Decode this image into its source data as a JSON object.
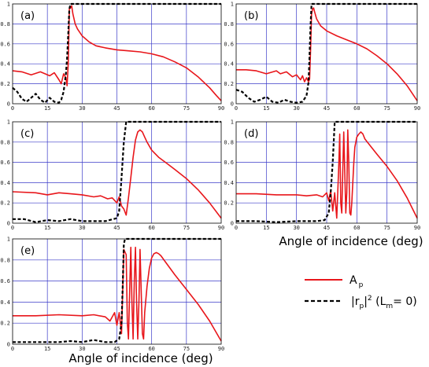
{
  "colors": {
    "ap": "#e8161b",
    "rp": "#000000",
    "grid": "#3b3bc8",
    "frame": "#000000"
  },
  "chart_data": [
    {
      "type": "line",
      "label": "(a)",
      "xlim": [
        0,
        90
      ],
      "ylim": [
        0,
        1
      ],
      "grid": true,
      "xticks": [
        0,
        15,
        30,
        45,
        60,
        75,
        90
      ],
      "yticks": [
        0,
        0.2,
        0.4,
        0.6,
        0.8,
        1
      ],
      "series": [
        {
          "key": "ap",
          "x": [
            0,
            4,
            8,
            12,
            16,
            18,
            20,
            21,
            22,
            23,
            23.5,
            24,
            24.5,
            25,
            25.5,
            26,
            27,
            28,
            30,
            33,
            36,
            40,
            45,
            50,
            55,
            60,
            65,
            70,
            75,
            80,
            85,
            88,
            90
          ],
          "y": [
            0.33,
            0.32,
            0.29,
            0.32,
            0.28,
            0.31,
            0.24,
            0.2,
            0.3,
            0.26,
            0.18,
            0.4,
            0.95,
            0.96,
            0.98,
            0.9,
            0.8,
            0.75,
            0.68,
            0.62,
            0.58,
            0.56,
            0.54,
            0.53,
            0.52,
            0.5,
            0.47,
            0.42,
            0.36,
            0.27,
            0.16,
            0.08,
            0.03
          ]
        },
        {
          "key": "rp",
          "x": [
            0,
            2,
            4,
            6,
            8,
            10,
            12,
            14,
            16,
            18,
            20,
            21,
            22,
            23,
            23.5,
            24,
            24.5,
            25,
            26,
            30,
            40,
            60,
            90
          ],
          "y": [
            0.16,
            0.12,
            0.05,
            0.02,
            0.06,
            0.1,
            0.04,
            0.01,
            0.06,
            0.02,
            0.01,
            0.04,
            0.12,
            0.3,
            0.45,
            0.7,
            0.95,
            1,
            1,
            1,
            1,
            1,
            1
          ]
        }
      ]
    },
    {
      "type": "line",
      "label": "(b)",
      "xlim": [
        0,
        90
      ],
      "ylim": [
        0,
        1
      ],
      "grid": true,
      "xticks": [
        0,
        15,
        30,
        45,
        60,
        75,
        90
      ],
      "yticks": [
        0,
        0.2,
        0.4,
        0.6,
        0.8,
        1
      ],
      "series": [
        {
          "key": "ap",
          "x": [
            0,
            5,
            10,
            15,
            20,
            22,
            25,
            28,
            30,
            32,
            33,
            34,
            35,
            36,
            36.5,
            37,
            37.5,
            38,
            38.5,
            39,
            40,
            42,
            45,
            50,
            55,
            60,
            65,
            70,
            75,
            80,
            85,
            88,
            90
          ],
          "y": [
            0.34,
            0.34,
            0.33,
            0.3,
            0.33,
            0.3,
            0.32,
            0.27,
            0.29,
            0.24,
            0.28,
            0.22,
            0.26,
            0.22,
            0.25,
            0.55,
            0.9,
            0.95,
            0.96,
            0.92,
            0.85,
            0.78,
            0.73,
            0.68,
            0.64,
            0.6,
            0.55,
            0.48,
            0.4,
            0.3,
            0.18,
            0.09,
            0.03
          ]
        },
        {
          "key": "rp",
          "x": [
            0,
            3,
            6,
            9,
            12,
            15,
            18,
            21,
            24,
            27,
            30,
            33,
            35,
            36,
            36.5,
            37,
            37.5,
            38,
            40,
            60,
            90
          ],
          "y": [
            0.14,
            0.12,
            0.06,
            0.02,
            0.04,
            0.07,
            0.02,
            0.01,
            0.04,
            0.02,
            0.01,
            0.02,
            0.08,
            0.22,
            0.5,
            0.8,
            1,
            1,
            1,
            1,
            1
          ]
        }
      ]
    },
    {
      "type": "line",
      "label": "(c)",
      "xlim": [
        0,
        90
      ],
      "ylim": [
        0,
        1
      ],
      "grid": true,
      "xticks": [
        0,
        15,
        30,
        45,
        60,
        75,
        90
      ],
      "yticks": [
        0,
        0.2,
        0.4,
        0.6,
        0.8,
        1
      ],
      "series": [
        {
          "key": "ap",
          "x": [
            0,
            10,
            15,
            20,
            25,
            30,
            35,
            38,
            41,
            43,
            45,
            46,
            47,
            48,
            49,
            50,
            51,
            52,
            53,
            54,
            55,
            56,
            57,
            58,
            60,
            63,
            66,
            70,
            75,
            80,
            85,
            90
          ],
          "y": [
            0.31,
            0.3,
            0.28,
            0.3,
            0.29,
            0.28,
            0.26,
            0.27,
            0.24,
            0.25,
            0.2,
            0.26,
            0.17,
            0.14,
            0.08,
            0.25,
            0.45,
            0.65,
            0.82,
            0.9,
            0.92,
            0.9,
            0.85,
            0.8,
            0.72,
            0.65,
            0.6,
            0.53,
            0.44,
            0.33,
            0.2,
            0.05
          ]
        },
        {
          "key": "rp",
          "x": [
            0,
            5,
            10,
            15,
            20,
            25,
            30,
            35,
            40,
            45,
            46,
            47,
            48,
            49,
            50,
            55,
            70,
            90
          ],
          "y": [
            0.04,
            0.04,
            0.01,
            0.03,
            0.02,
            0.04,
            0.02,
            0.02,
            0.02,
            0.05,
            0.12,
            0.45,
            0.8,
            1,
            1,
            1,
            1,
            1
          ]
        }
      ]
    },
    {
      "type": "line",
      "label": "(d)",
      "xlim": [
        0,
        90
      ],
      "ylim": [
        0,
        1
      ],
      "grid": true,
      "xticks": [
        0,
        15,
        30,
        45,
        60,
        75,
        90
      ],
      "yticks": [
        0,
        0.2,
        0.4,
        0.6,
        0.8,
        1
      ],
      "series": [
        {
          "key": "ap",
          "x": [
            0,
            10,
            20,
            30,
            35,
            40,
            43,
            45,
            46,
            47,
            48,
            49,
            50,
            51,
            51.5,
            52,
            52.5,
            53,
            53.5,
            54,
            54.5,
            55,
            55.5,
            56,
            56.5,
            57,
            57.5,
            58,
            58.5,
            59,
            60,
            61,
            62,
            63,
            64,
            66,
            70,
            75,
            80,
            85,
            90
          ],
          "y": [
            0.29,
            0.29,
            0.28,
            0.28,
            0.27,
            0.28,
            0.26,
            0.3,
            0.22,
            0.32,
            0.12,
            0.3,
            0.05,
            0.55,
            0.88,
            0.2,
            0.1,
            0.5,
            0.9,
            0.5,
            0.1,
            0.3,
            0.92,
            0.6,
            0.1,
            0.08,
            0.2,
            0.4,
            0.6,
            0.75,
            0.85,
            0.88,
            0.9,
            0.88,
            0.83,
            0.78,
            0.68,
            0.56,
            0.42,
            0.25,
            0.05
          ]
        },
        {
          "key": "rp",
          "x": [
            0,
            10,
            20,
            30,
            40,
            44,
            46,
            47,
            48,
            49,
            50,
            60,
            90
          ],
          "y": [
            0.02,
            0.02,
            0.01,
            0.02,
            0.02,
            0.03,
            0.1,
            0.3,
            0.6,
            1,
            1,
            1,
            1
          ]
        }
      ]
    },
    {
      "type": "line",
      "label": "(e)",
      "xlim": [
        0,
        90
      ],
      "ylim": [
        0,
        1
      ],
      "grid": true,
      "xticks": [
        0,
        15,
        30,
        45,
        60,
        75,
        90
      ],
      "yticks": [
        0,
        0.2,
        0.4,
        0.6,
        0.8,
        1
      ],
      "series": [
        {
          "key": "ap",
          "x": [
            0,
            10,
            20,
            30,
            35,
            40,
            42,
            44,
            45,
            46,
            47,
            48,
            49,
            49.5,
            50,
            50.5,
            51,
            51.5,
            52,
            52.5,
            53,
            53.5,
            54,
            54.5,
            55,
            55.5,
            56,
            56.5,
            57,
            58,
            59,
            60,
            61,
            62,
            63,
            64,
            66,
            70,
            75,
            80,
            85,
            90
          ],
          "y": [
            0.27,
            0.27,
            0.28,
            0.27,
            0.28,
            0.26,
            0.22,
            0.3,
            0.18,
            0.3,
            0.1,
            0.9,
            0.85,
            0.2,
            0.05,
            0.5,
            0.92,
            0.4,
            0.05,
            0.6,
            0.92,
            0.4,
            0.05,
            0.4,
            0.9,
            0.5,
            0.1,
            0.05,
            0.3,
            0.55,
            0.72,
            0.82,
            0.86,
            0.87,
            0.86,
            0.84,
            0.78,
            0.66,
            0.52,
            0.38,
            0.22,
            0.03
          ]
        },
        {
          "key": "rp",
          "x": [
            0,
            10,
            20,
            25,
            30,
            35,
            40,
            44,
            46,
            47,
            47.5,
            48,
            48.5,
            49,
            60,
            90
          ],
          "y": [
            0.02,
            0.02,
            0.02,
            0.03,
            0.02,
            0.04,
            0.02,
            0.02,
            0.05,
            0.2,
            0.55,
            0.95,
            1,
            1,
            1,
            1
          ]
        }
      ]
    }
  ],
  "axis_title": "Angle of incidence (deg)",
  "legend": {
    "ap": {
      "main": "A",
      "sub": "p"
    },
    "rp": {
      "abs_open": "|r",
      "sub": "p",
      "abs_close": "|",
      "sup": "2",
      "cond_open": " (L",
      "cond_sub": "m",
      "cond_close": "= 0)"
    }
  }
}
